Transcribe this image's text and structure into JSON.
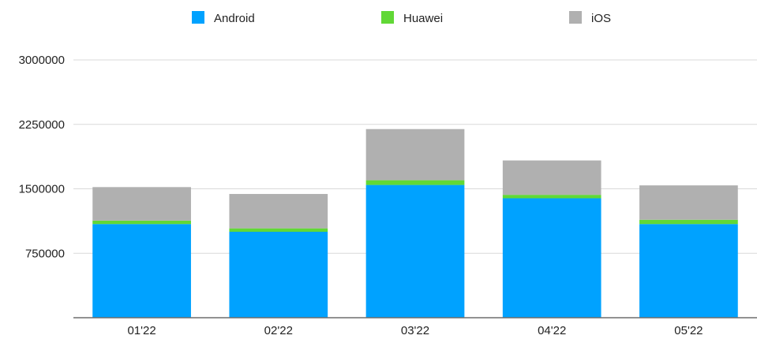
{
  "chart_data": {
    "type": "bar",
    "stacked": true,
    "categories": [
      "01'22",
      "02'22",
      "03'22",
      "04'22",
      "05'22"
    ],
    "series": [
      {
        "name": "Android",
        "color": "#00a2ff",
        "values": [
          1090000,
          1000000,
          1545000,
          1390000,
          1090000
        ]
      },
      {
        "name": "Huawei",
        "color": "#61d836",
        "values": [
          40000,
          40000,
          55000,
          40000,
          50000
        ]
      },
      {
        "name": "iOS",
        "color": "#b0b0b0",
        "values": [
          390000,
          400000,
          595000,
          400000,
          400000
        ]
      }
    ],
    "yticks": [
      "750000",
      "1500000",
      "2250000",
      "3000000"
    ],
    "ylim": [
      0,
      3000000
    ],
    "grid": true,
    "legend_position": "top-center",
    "title": "",
    "xlabel": "",
    "ylabel": ""
  }
}
